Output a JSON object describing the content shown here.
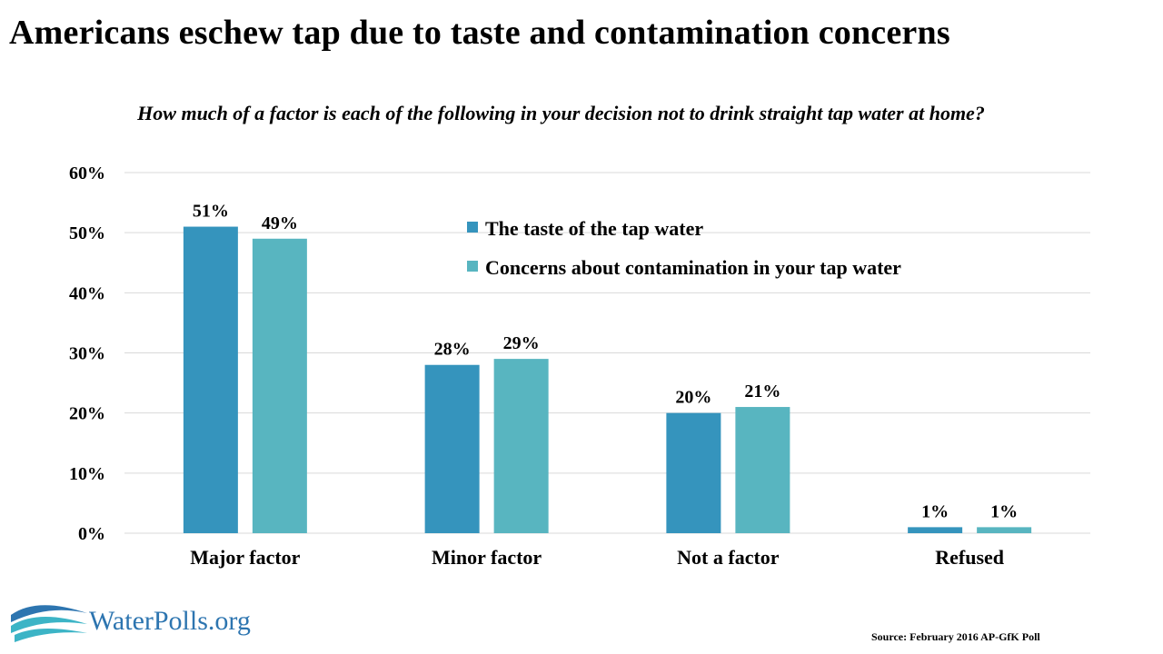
{
  "title": "Americans eschew tap due to taste and contamination concerns",
  "subtitle": "How much of a factor is each of the following in your decision not to drink straight tap water at home?",
  "source": "Source: February 2016 AP-GfK Poll",
  "logo_text": "WaterPolls.org",
  "colors": {
    "series1": "#3594bd",
    "series2": "#58b5c0",
    "grid": "#d9d9d9",
    "logo_blue": "#2d75b0",
    "logo_teal": "#3cb4c6"
  },
  "chart_data": {
    "type": "bar",
    "categories": [
      "Major factor",
      "Minor factor",
      "Not a factor",
      "Refused"
    ],
    "series": [
      {
        "name": "The taste of the tap water",
        "values": [
          51,
          28,
          20,
          1
        ],
        "labels": [
          "51%",
          "28%",
          "20%",
          "1%"
        ]
      },
      {
        "name": "Concerns about contamination in your tap water",
        "values": [
          49,
          29,
          21,
          1
        ],
        "labels": [
          "49%",
          "29%",
          "21%",
          "1%"
        ]
      }
    ],
    "ylim": [
      0,
      60
    ],
    "yticks": [
      0,
      10,
      20,
      30,
      40,
      50,
      60
    ],
    "ytick_labels": [
      "0%",
      "10%",
      "20%",
      "30%",
      "40%",
      "50%",
      "60%"
    ],
    "grid": true,
    "legend_position": "top-center"
  }
}
